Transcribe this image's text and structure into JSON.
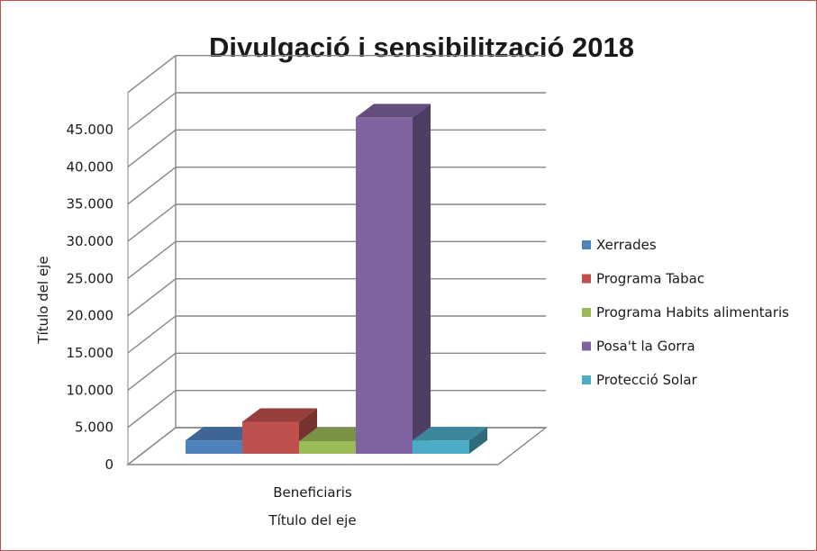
{
  "chart_data": {
    "type": "bar",
    "title": "Divulgació i sensibilització 2018",
    "xlabel": "Título del eje",
    "ylabel": "Título del eje",
    "categories": [
      "Beneficiaris"
    ],
    "series": [
      {
        "name": "Xerrades",
        "values": [
          1800
        ],
        "color": "#4f81bd"
      },
      {
        "name": "Programa Tabac",
        "values": [
          4300
        ],
        "color": "#c0504d"
      },
      {
        "name": "Programa Habits alimentaris",
        "values": [
          1700
        ],
        "color": "#9bbb59"
      },
      {
        "name": "Posa't la Gorra",
        "values": [
          45200
        ],
        "color": "#8064a2"
      },
      {
        "name": "Protecció Solar",
        "values": [
          1800
        ],
        "color": "#4bacc6"
      }
    ],
    "ylim": [
      0,
      45000
    ],
    "yticks": [
      "0",
      "5.000",
      "10.000",
      "15.000",
      "20.000",
      "25.000",
      "30.000",
      "35.000",
      "40.000",
      "45.000"
    ],
    "grid": true,
    "legend_position": "right",
    "projection": "3d"
  },
  "colors": {
    "frame_border": "#c0504d",
    "gridline": "#868686"
  }
}
